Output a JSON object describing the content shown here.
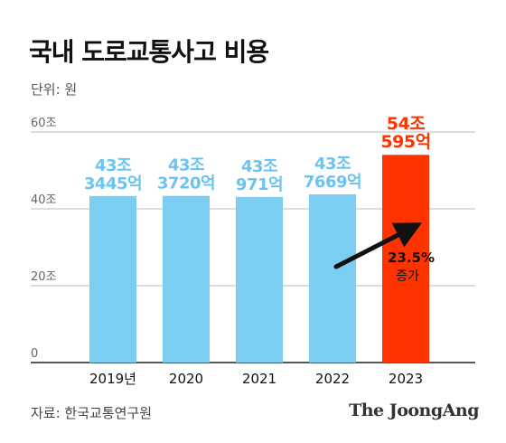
{
  "title": "국내 도로교통사고 비용",
  "unit_label": "단위: 원",
  "source": "자료: 한국교통연구원",
  "brand": "The JoongAng",
  "annotation": {
    "line1": "23.5%",
    "line2": "증가"
  },
  "colors": {
    "bar": "#7ccdf2",
    "highlight_bar": "#ff3300",
    "label": "#6cc3ef",
    "highlight_label": "#ff3300",
    "grid": "#bbbbbb",
    "axis_text": "#666666",
    "arrow": "#111111"
  },
  "chart_data": {
    "type": "bar",
    "categories": [
      "2019년",
      "2020",
      "2021",
      "2022",
      "2023"
    ],
    "values": [
      43.3445,
      43.372,
      43.0971,
      43.7669,
      54.0595
    ],
    "value_labels": [
      [
        "43조",
        "3445억"
      ],
      [
        "43조",
        "3720억"
      ],
      [
        "43조",
        "971억"
      ],
      [
        "43조",
        "7669억"
      ],
      [
        "54조",
        "595억"
      ]
    ],
    "highlight_index": 4,
    "yticks": [
      {
        "value": 0,
        "label": "0"
      },
      {
        "value": 20,
        "label": "20조"
      },
      {
        "value": 40,
        "label": "40조"
      },
      {
        "value": 60,
        "label": "60조"
      }
    ],
    "ylim": [
      0,
      60
    ],
    "grid": true
  }
}
